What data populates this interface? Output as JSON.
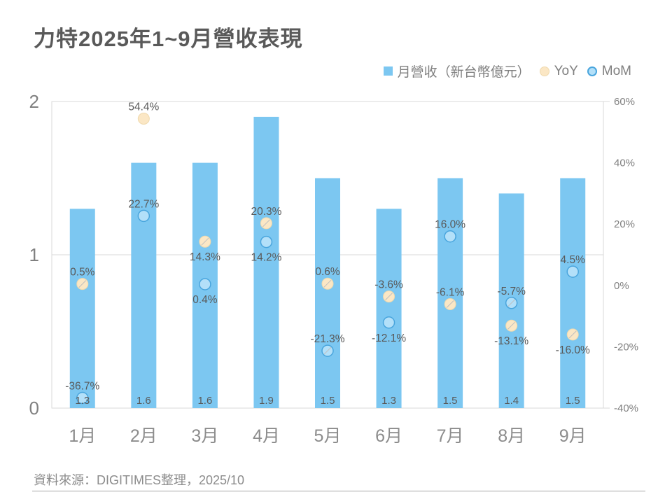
{
  "title": "力特2025年1~9月營收表現",
  "legend": [
    {
      "label": "月營收（新台幣億元）",
      "marker": "square",
      "color": "#7CC7F1"
    },
    {
      "label": "YoY",
      "marker": "circle",
      "color": "#FBE7C5"
    },
    {
      "label": "MoM",
      "marker": "circle",
      "color": "#B3E0F9"
    }
  ],
  "footer": {
    "source": "資料來源：DIGITIMES整理，2025/10"
  },
  "chart_data": {
    "type": "bar",
    "title": "力特2025年1~9月營收表現",
    "categories": [
      "1月",
      "2月",
      "3月",
      "4月",
      "5月",
      "6月",
      "7月",
      "8月",
      "9月"
    ],
    "series": [
      {
        "name": "月營收（新台幣億元）",
        "type": "bar",
        "axis": "left",
        "values": [
          1.3,
          1.6,
          1.6,
          1.9,
          1.5,
          1.3,
          1.5,
          1.4,
          1.5
        ],
        "labels": [
          "1.3",
          "1.6",
          "1.6",
          "1.9",
          "1.5",
          "1.3",
          "1.5",
          "1.4",
          "1.5"
        ]
      },
      {
        "name": "YoY",
        "key": "yoy",
        "type": "scatter",
        "axis": "right",
        "values": [
          0.5,
          54.4,
          14.3,
          20.3,
          0.6,
          -3.6,
          -6.1,
          -13.1,
          -16.0
        ],
        "labels": [
          "0.5%",
          "54.4%",
          "14.3%",
          "20.3%",
          "0.6%",
          "-3.6%",
          "-6.1%",
          "-13.1%",
          "-16.0%"
        ],
        "label_pos": [
          "above",
          "above",
          "below",
          "above",
          "above",
          "above",
          "above",
          "below",
          "below"
        ],
        "leaders": [
          true,
          false,
          true,
          true,
          true,
          true,
          true,
          true,
          true
        ]
      },
      {
        "name": "MoM",
        "key": "mom",
        "type": "scatter",
        "axis": "right",
        "values": [
          -36.7,
          22.7,
          0.4,
          14.2,
          -21.3,
          -12.1,
          16.0,
          -5.7,
          4.5
        ],
        "labels": [
          "-36.7%",
          "22.7%",
          "0.4%",
          "14.2%",
          "-21.3%",
          "-12.1%",
          "16.0%",
          "-5.7%",
          "4.5%"
        ],
        "label_pos": [
          "above",
          "above",
          "below",
          "below",
          "above",
          "below",
          "above",
          "above",
          "above"
        ],
        "leaders": [
          false,
          false,
          false,
          false,
          true,
          false,
          false,
          true,
          false
        ]
      }
    ],
    "left_axis": {
      "min": 0,
      "max": 2,
      "ticks": [
        {
          "label": "2",
          "value": 2
        },
        {
          "label": "1",
          "value": 1
        },
        {
          "label": "0",
          "value": 0
        }
      ]
    },
    "right_axis": {
      "min": -40,
      "max": 60,
      "ticks": [
        {
          "label": "60%",
          "value": 60
        },
        {
          "label": "40%",
          "value": 40
        },
        {
          "label": "20%",
          "value": 20
        },
        {
          "label": "0%",
          "value": 0
        },
        {
          "label": "-20%",
          "value": -20
        },
        {
          "label": "-40%",
          "value": -40
        }
      ]
    },
    "grid": "horizontal-at-1",
    "legend_position": "top-right",
    "colors": {
      "bar": "#7CC7F1",
      "yoy_fill": "#FBE7C5",
      "yoy_stroke": "#EFD9AD",
      "mom_fill": "#B3E0F9",
      "mom_stroke": "#49A5DD",
      "grid": "#D9D9D9",
      "axis_text": "#808080",
      "month_text": "#8C8C8C",
      "label_text": "#595959",
      "leader": "#BFBFBF",
      "title_text": "#595959"
    }
  }
}
